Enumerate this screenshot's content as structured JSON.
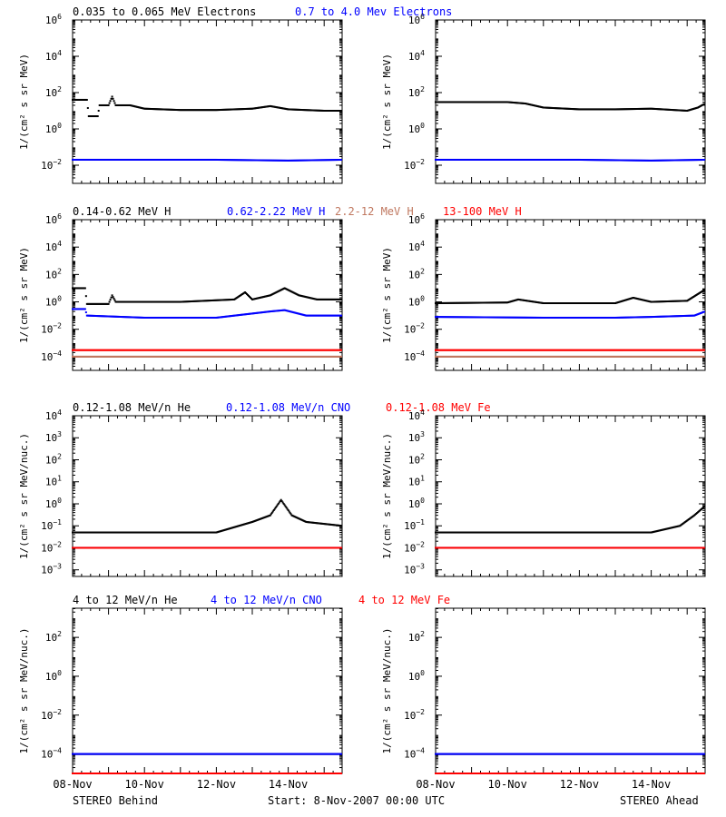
{
  "rows": [
    {
      "legend": [
        {
          "text": "0.035 to 0.065 MeV Electrons",
          "color": "#000000"
        },
        {
          "text": "0.7 to 4.0 Mev Electrons",
          "color": "#0000ff"
        }
      ],
      "ylabel": "1/(cm² s sr MeV)",
      "log_range": [
        -3,
        6
      ],
      "ticks": [
        {
          "e": -2,
          "t": "10"
        },
        {
          "e": 0,
          "t": "10"
        },
        {
          "e": 2,
          "t": "10"
        },
        {
          "e": 4,
          "t": "10"
        },
        {
          "e": 6,
          "t": "10"
        }
      ]
    },
    {
      "legend": [
        {
          "text": "0.14-0.62 MeV H",
          "color": "#000000"
        },
        {
          "text": "0.62-2.22 MeV H",
          "color": "#0000ff"
        },
        {
          "text": "2.2-12 MeV H",
          "color": "#c07860"
        },
        {
          "text": "13-100 MeV H",
          "color": "#ff0000"
        }
      ],
      "ylabel": "1/(cm² s sr MeV)",
      "log_range": [
        -5,
        6
      ],
      "ticks": [
        {
          "e": -4,
          "t": "10"
        },
        {
          "e": -2,
          "t": "10"
        },
        {
          "e": 0,
          "t": "10"
        },
        {
          "e": 2,
          "t": "10"
        },
        {
          "e": 4,
          "t": "10"
        },
        {
          "e": 6,
          "t": "10"
        }
      ]
    },
    {
      "legend": [
        {
          "text": "0.12-1.08 MeV/n He",
          "color": "#000000"
        },
        {
          "text": "0.12-1.08 MeV/n CNO",
          "color": "#0000ff"
        },
        {
          "text": "0.12-1.08 MeV Fe",
          "color": "#ff0000"
        }
      ],
      "ylabel": "1/(cm² s sr MeV/nuc.)",
      "log_range": [
        -3.3,
        4
      ],
      "ticks": [
        {
          "e": -3,
          "t": "10"
        },
        {
          "e": -2,
          "t": "10"
        },
        {
          "e": -1,
          "t": "10"
        },
        {
          "e": 0,
          "t": "10"
        },
        {
          "e": 1,
          "t": "10"
        },
        {
          "e": 2,
          "t": "10"
        },
        {
          "e": 3,
          "t": "10"
        },
        {
          "e": 4,
          "t": "10"
        }
      ]
    },
    {
      "legend": [
        {
          "text": "4 to 12 MeV/n He",
          "color": "#000000"
        },
        {
          "text": "4 to 12 MeV/n CNO",
          "color": "#0000ff"
        },
        {
          "text": "4 to 12 MeV Fe",
          "color": "#ff0000"
        }
      ],
      "ylabel": "1/(cm² s sr MeV/nuc.)",
      "log_range": [
        -5,
        3.5
      ],
      "ticks": [
        {
          "e": -4,
          "t": "10"
        },
        {
          "e": -2,
          "t": "10"
        },
        {
          "e": 0,
          "t": "10"
        },
        {
          "e": 2,
          "t": "10"
        }
      ]
    }
  ],
  "x_labels": [
    "08-Nov",
    "10-Nov",
    "12-Nov",
    "14-Nov"
  ],
  "footer": {
    "left": "STEREO Behind",
    "center": "Start:  8-Nov-2007 00:00 UTC",
    "right": "STEREO Ahead"
  },
  "chart_data": {
    "type": "scatter",
    "x_unit": "days since 08-Nov-2007",
    "x_range": [
      0,
      7.5
    ],
    "y_scale": "log",
    "panels": [
      {
        "row": 0,
        "side": "left",
        "series": [
          {
            "name": "0.035 to 0.065 MeV Electrons",
            "color": "#000000",
            "points": [
              [
                0,
                40
              ],
              [
                0.4,
                40
              ],
              [
                0.45,
                5
              ],
              [
                0.7,
                5
              ],
              [
                0.75,
                20
              ],
              [
                1.0,
                20
              ],
              [
                1.1,
                60
              ],
              [
                1.2,
                20
              ],
              [
                1.6,
                20
              ],
              [
                2.0,
                13
              ],
              [
                3.0,
                11
              ],
              [
                4.0,
                11
              ],
              [
                5.0,
                13
              ],
              [
                5.5,
                18
              ],
              [
                6.0,
                12
              ],
              [
                7.0,
                10
              ],
              [
                7.5,
                10
              ]
            ]
          },
          {
            "name": "0.7 to 4.0 Mev Electrons",
            "color": "#0000ff",
            "points": [
              [
                0,
                0.02
              ],
              [
                2.0,
                0.02
              ],
              [
                4.0,
                0.02
              ],
              [
                6.0,
                0.018
              ],
              [
                7.5,
                0.02
              ]
            ]
          }
        ]
      },
      {
        "row": 0,
        "side": "right",
        "series": [
          {
            "name": "0.035 to 0.065 MeV Electrons",
            "color": "#000000",
            "points": [
              [
                0,
                30
              ],
              [
                1.0,
                30
              ],
              [
                2.0,
                30
              ],
              [
                2.5,
                25
              ],
              [
                3.0,
                15
              ],
              [
                4.0,
                12
              ],
              [
                5.0,
                12
              ],
              [
                6.0,
                13
              ],
              [
                7.0,
                10
              ],
              [
                7.3,
                15
              ],
              [
                7.5,
                25
              ]
            ]
          },
          {
            "name": "0.7 to 4.0 Mev Electrons",
            "color": "#0000ff",
            "points": [
              [
                0,
                0.02
              ],
              [
                2.0,
                0.02
              ],
              [
                4.0,
                0.02
              ],
              [
                6.0,
                0.018
              ],
              [
                7.5,
                0.02
              ]
            ]
          }
        ]
      },
      {
        "row": 1,
        "side": "left",
        "series": [
          {
            "name": "0.14-0.62 MeV H",
            "color": "#000000",
            "points": [
              [
                0,
                10
              ],
              [
                0.35,
                10
              ],
              [
                0.4,
                0.7
              ],
              [
                1.0,
                0.7
              ],
              [
                1.1,
                3
              ],
              [
                1.2,
                1.0
              ],
              [
                2.0,
                1.0
              ],
              [
                3.0,
                1.0
              ],
              [
                4.5,
                1.5
              ],
              [
                4.8,
                5
              ],
              [
                5.0,
                1.5
              ],
              [
                5.5,
                3
              ],
              [
                5.9,
                10
              ],
              [
                6.3,
                3
              ],
              [
                6.8,
                1.5
              ],
              [
                7.5,
                1.5
              ]
            ]
          },
          {
            "name": "0.62-2.22 MeV H",
            "color": "#0000ff",
            "points": [
              [
                0,
                0.3
              ],
              [
                0.35,
                0.3
              ],
              [
                0.4,
                0.1
              ],
              [
                2.0,
                0.07
              ],
              [
                4.0,
                0.07
              ],
              [
                5.5,
                0.2
              ],
              [
                5.9,
                0.25
              ],
              [
                6.5,
                0.1
              ],
              [
                7.5,
                0.1
              ]
            ]
          },
          {
            "name": "2.2-12 MeV H",
            "color": "#c07860",
            "points": [
              [
                0,
                0.0001
              ],
              [
                7.5,
                0.0001
              ]
            ]
          },
          {
            "name": "13-100 MeV H",
            "color": "#ff0000",
            "points": [
              [
                0,
                0.0003
              ],
              [
                7.5,
                0.0003
              ]
            ]
          }
        ]
      },
      {
        "row": 1,
        "side": "right",
        "series": [
          {
            "name": "0.14-0.62 MeV H",
            "color": "#000000",
            "points": [
              [
                0,
                0.8
              ],
              [
                2.0,
                0.9
              ],
              [
                2.3,
                1.5
              ],
              [
                3.0,
                0.8
              ],
              [
                5.0,
                0.8
              ],
              [
                5.5,
                2
              ],
              [
                6.0,
                1.0
              ],
              [
                7.0,
                1.2
              ],
              [
                7.5,
                8
              ]
            ]
          },
          {
            "name": "0.62-2.22 MeV H",
            "color": "#0000ff",
            "points": [
              [
                0,
                0.08
              ],
              [
                3.0,
                0.07
              ],
              [
                5.0,
                0.07
              ],
              [
                6.0,
                0.08
              ],
              [
                7.2,
                0.1
              ],
              [
                7.5,
                0.2
              ]
            ]
          },
          {
            "name": "2.2-12 MeV H",
            "color": "#c07860",
            "points": [
              [
                0,
                0.0001
              ],
              [
                7.5,
                0.0001
              ]
            ]
          },
          {
            "name": "13-100 MeV H",
            "color": "#ff0000",
            "points": [
              [
                0,
                0.0003
              ],
              [
                7.5,
                0.0003
              ]
            ]
          }
        ]
      },
      {
        "row": 2,
        "side": "left",
        "series": [
          {
            "name": "0.12-1.08 MeV/n He",
            "color": "#000000",
            "points": [
              [
                0,
                0.05
              ],
              [
                4.0,
                0.05
              ],
              [
                5.0,
                0.15
              ],
              [
                5.5,
                0.3
              ],
              [
                5.8,
                1.5
              ],
              [
                6.1,
                0.3
              ],
              [
                6.5,
                0.15
              ],
              [
                7.5,
                0.1
              ]
            ]
          },
          {
            "name": "0.12-1.08 MeV/n CNO",
            "color": "#0000ff",
            "points": [
              [
                0,
                0.01
              ],
              [
                7.5,
                0.01
              ]
            ]
          },
          {
            "name": "0.12-1.08 MeV Fe",
            "color": "#ff0000",
            "points": [
              [
                0,
                0.01
              ],
              [
                7.5,
                0.01
              ]
            ]
          }
        ]
      },
      {
        "row": 2,
        "side": "right",
        "series": [
          {
            "name": "0.12-1.08 MeV/n He",
            "color": "#000000",
            "points": [
              [
                0,
                0.05
              ],
              [
                6.0,
                0.05
              ],
              [
                6.8,
                0.1
              ],
              [
                7.2,
                0.3
              ],
              [
                7.5,
                0.8
              ]
            ]
          },
          {
            "name": "0.12-1.08 MeV/n CNO",
            "color": "#0000ff",
            "points": [
              [
                0,
                0.01
              ],
              [
                7.5,
                0.01
              ]
            ]
          },
          {
            "name": "0.12-1.08 MeV Fe",
            "color": "#ff0000",
            "points": [
              [
                0,
                0.01
              ],
              [
                7.5,
                0.01
              ]
            ]
          }
        ]
      },
      {
        "row": 3,
        "side": "left",
        "series": [
          {
            "name": "4 to 12 MeV/n He",
            "color": "#000000",
            "points": [
              [
                0,
                0.0001
              ],
              [
                7.5,
                0.0001
              ]
            ]
          },
          {
            "name": "4 to 12 MeV/n CNO",
            "color": "#0000ff",
            "points": [
              [
                0,
                0.0001
              ],
              [
                7.5,
                0.0001
              ]
            ]
          },
          {
            "name": "4 to 12 MeV Fe",
            "color": "#ff0000",
            "points": [
              [
                0,
                1e-05
              ],
              [
                7.5,
                1e-05
              ]
            ]
          }
        ]
      },
      {
        "row": 3,
        "side": "right",
        "series": [
          {
            "name": "4 to 12 MeV/n He",
            "color": "#000000",
            "points": [
              [
                0,
                0.0001
              ],
              [
                7.5,
                0.0001
              ]
            ]
          },
          {
            "name": "4 to 12 MeV/n CNO",
            "color": "#0000ff",
            "points": [
              [
                0,
                0.0001
              ],
              [
                7.5,
                0.0001
              ]
            ]
          },
          {
            "name": "4 to 12 MeV Fe",
            "color": "#ff0000",
            "points": [
              [
                0,
                1e-05
              ],
              [
                7.5,
                1e-05
              ]
            ]
          }
        ]
      }
    ]
  }
}
